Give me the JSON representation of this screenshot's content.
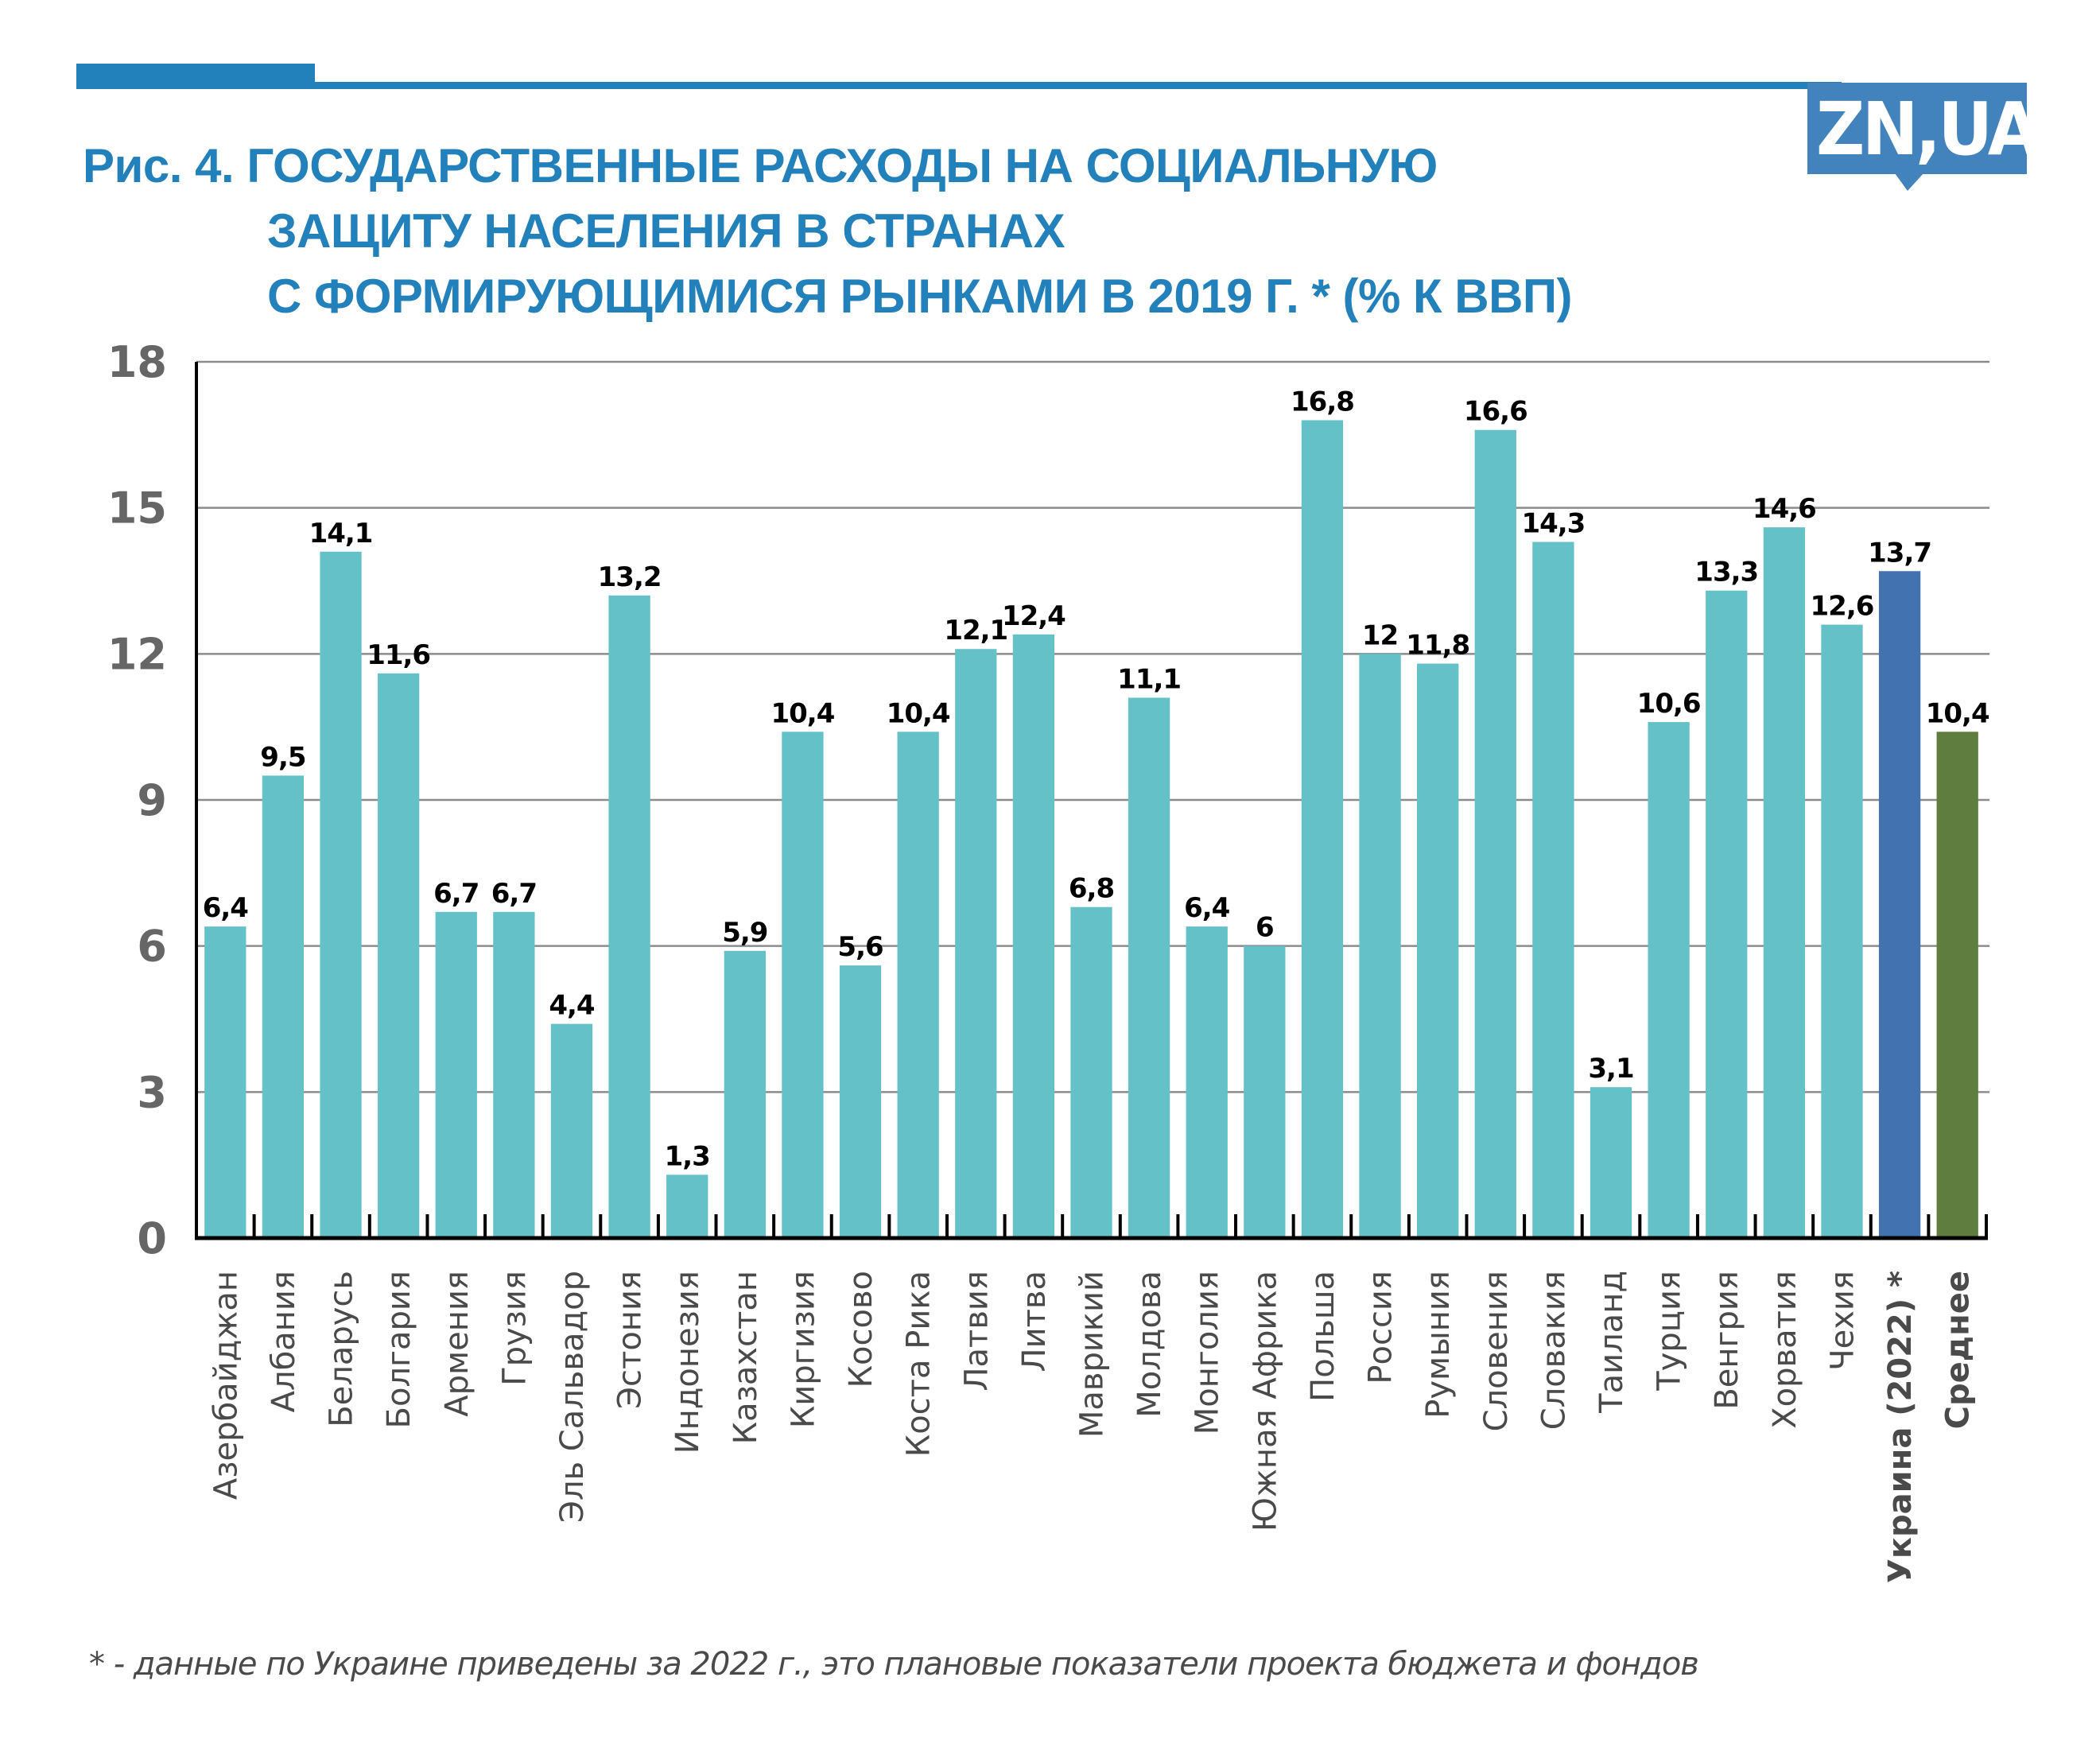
{
  "logo": {
    "text": "ZN,UA",
    "color": "#4283BE"
  },
  "header": {
    "accent_color": "#2280BA"
  },
  "chart_data": {
    "type": "bar",
    "title_lines": [
      "Рис. 4. ГОСУДАРСТВЕННЫЕ РАСХОДЫ НА СОЦИАЛЬНУЮ",
      "ЗАЩИТУ НАСЕЛЕНИЯ В СТРАНАХ",
      "С ФОРМИРУЮЩИМИСЯ РЫНКАМИ В 2019 Г. * (% К ВВП)"
    ],
    "xlabel": "",
    "ylabel": "",
    "ylim": [
      0,
      18
    ],
    "yticks": [
      0,
      3,
      6,
      9,
      12,
      15,
      18
    ],
    "grid": true,
    "legend": null,
    "categories": [
      "Азербайджан",
      "Албания",
      "Беларусь",
      "Болгария",
      "Армения",
      "Грузия",
      "Эль Сальвадор",
      "Эстония",
      "Индонезия",
      "Казахстан",
      "Киргизия",
      "Косово",
      "Коста Рика",
      "Латвия",
      "Литва",
      "Маврикий",
      "Молдова",
      "Монголия",
      "Южная Африка",
      "Польша",
      "Россия",
      "Румыния",
      "Словения",
      "Словакия",
      "Таиланд",
      "Турция",
      "Венгрия",
      "Хорватия",
      "Чехия",
      "Украина (2022) *",
      "Среднее"
    ],
    "values": [
      6.4,
      9.5,
      14.1,
      11.6,
      6.7,
      6.7,
      4.4,
      13.2,
      1.3,
      5.9,
      10.4,
      5.6,
      10.4,
      12.1,
      12.4,
      6.8,
      11.1,
      6.4,
      6,
      16.8,
      12,
      11.8,
      16.6,
      14.3,
      3.1,
      10.6,
      13.3,
      14.6,
      12.6,
      13.7,
      10.4
    ],
    "value_labels": [
      "6,4",
      "9,5",
      "14,1",
      "11,6",
      "6,7",
      "6,7",
      "4,4",
      "13,2",
      "1,3",
      "5,9",
      "10,4",
      "5,6",
      "10,4",
      "12,1",
      "12,4",
      "6,8",
      "11,1",
      "6,4",
      "6",
      "16,8",
      "12",
      "11,8",
      "16,6",
      "14,3",
      "3,1",
      "10,6",
      "13,3",
      "14,6",
      "12,6",
      "13,7",
      "10,4"
    ],
    "highlight": {
      "Украина (2022) *": "#4272B0",
      "Среднее": "#5E7D3E"
    },
    "bold_categories": [
      "Украина (2022) *",
      "Среднее"
    ],
    "bar_color": "#65C1C8",
    "footnote": "* - данные по Украине приведены за 2022 г., это плановые показатели проекта бюджета и фондов"
  }
}
